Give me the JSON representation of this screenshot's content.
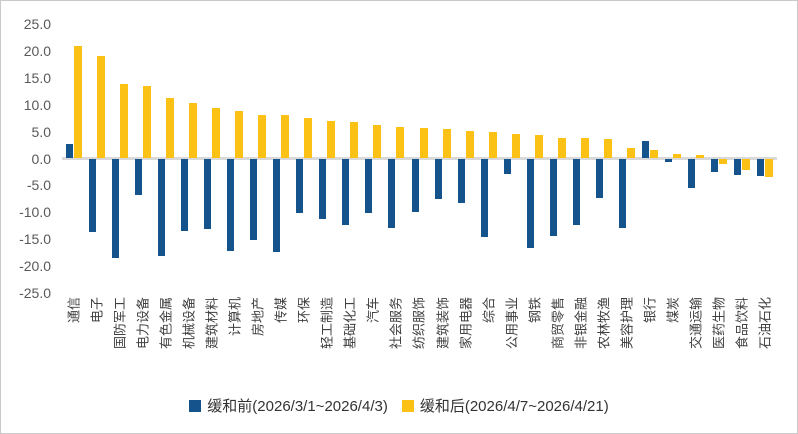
{
  "chart_data": {
    "type": "bar",
    "title": "",
    "xlabel": "",
    "ylabel": "",
    "ylim": [
      -25,
      25
    ],
    "y_ticks": [
      "25.0",
      "20.0",
      "15.0",
      "10.0",
      "5.0",
      "0.0",
      "-5.0",
      "-10.0",
      "-15.0",
      "-20.0",
      "-25.0"
    ],
    "grid": false,
    "legend_position": "bottom",
    "zero_line_color": "#d9d9d9",
    "categories": [
      "通信",
      "电子",
      "国防军工",
      "电力设备",
      "有色金属",
      "机械设备",
      "建筑材料",
      "计算机",
      "房地产",
      "传媒",
      "环保",
      "轻工制造",
      "基础化工",
      "汽车",
      "社会服务",
      "纺织服饰",
      "建筑装饰",
      "家用电器",
      "综合",
      "公用事业",
      "钢铁",
      "商贸零售",
      "非银金融",
      "农林牧渔",
      "美容护理",
      "银行",
      "煤炭",
      "交通运输",
      "医药生物",
      "食品饮料",
      "石油石化"
    ],
    "series": [
      {
        "name": "缓和前(2026/3/1~2026/4/3)",
        "color": "#14538c",
        "values": [
          2.7,
          -13.6,
          -18.5,
          -6.7,
          -18.2,
          -13.5,
          -13.1,
          -17.2,
          -15.2,
          -17.3,
          -10.2,
          -11.2,
          -12.3,
          -10.2,
          -13.0,
          -10.0,
          -7.6,
          -8.3,
          -14.6,
          -2.9,
          -16.6,
          -14.4,
          -12.4,
          -7.4,
          -12.9,
          3.2,
          -0.6,
          -5.4,
          -2.5,
          -3.1,
          -3.2
        ]
      },
      {
        "name": "缓和后(2026/4/7~2026/4/21)",
        "color": "#fcc115",
        "values": [
          21.0,
          19.0,
          13.8,
          13.5,
          11.2,
          10.4,
          9.4,
          8.9,
          8.1,
          8.1,
          7.6,
          7.0,
          6.7,
          6.3,
          5.9,
          5.7,
          5.5,
          5.1,
          4.9,
          4.6,
          4.3,
          3.9,
          3.9,
          3.7,
          1.9,
          1.6,
          0.8,
          0.6,
          -1.1,
          -2.2,
          -3.4
        ]
      }
    ]
  }
}
